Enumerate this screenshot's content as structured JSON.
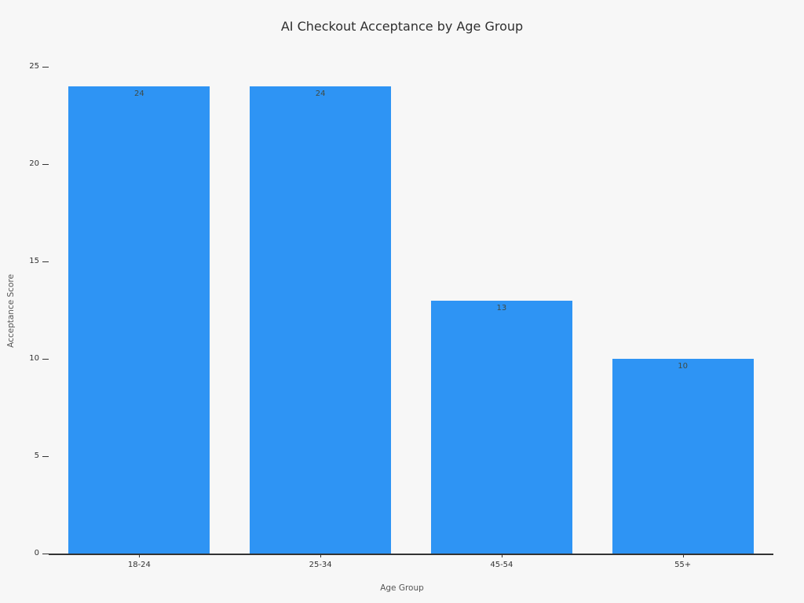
{
  "chart_data": {
    "type": "bar",
    "title": "AI Checkout Acceptance by Age Group",
    "categories": [
      "18-24",
      "25-34",
      "45-54",
      "55+"
    ],
    "values": [
      24,
      24,
      13,
      10
    ],
    "xlabel": "Age Group",
    "ylabel": "Acceptance Score",
    "ylim": [
      0,
      25
    ],
    "yticks": [
      0,
      5,
      10,
      15,
      20,
      25
    ],
    "bar_color": "#2E94F4",
    "value_label_color": "#3f4a44",
    "grid": false,
    "legend": null
  }
}
